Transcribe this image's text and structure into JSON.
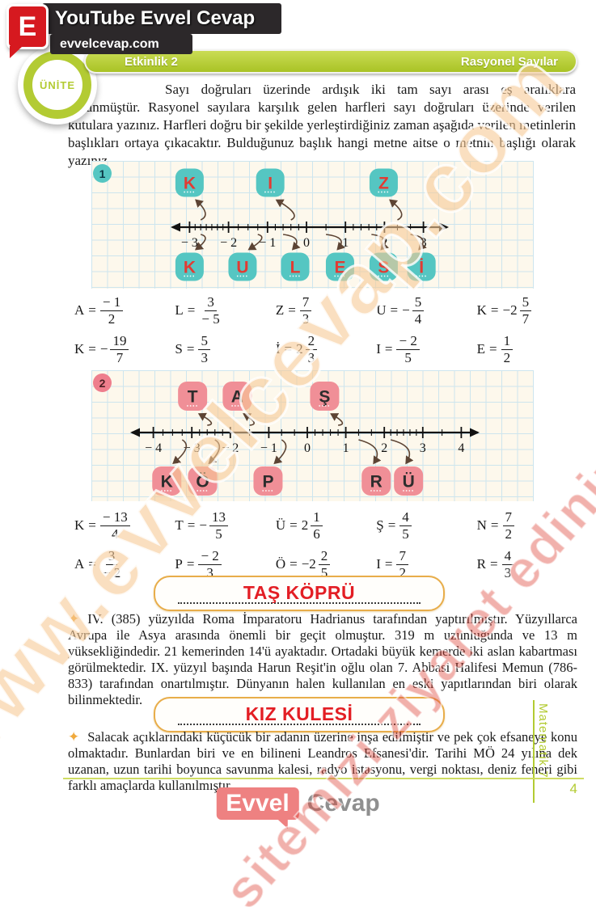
{
  "header": {
    "badge_letter": "E",
    "channel": "YouTube Evvel Cevap",
    "site": "evvelcevap.com",
    "unit_badge": "ÜNİTE",
    "activity": "Etkinlik 2",
    "topic": "Rasyonel Sayılar"
  },
  "intro": "Sayı doğruları üzerinde ardışık iki tam sayı arası eş aralıklara bölünmüştür. Rasyonel sayılara karşılık gelen harfleri sayı doğruları üzerinde verilen kutulara yazınız. Harfleri doğru bir şekilde yerleştirdiğiniz zaman aşağıda verilen metinlerin başlıkları ortaya çıkacaktır. Bulduğunuz başlık hangi metne aitse o metnin başlığı olarak yazınız.",
  "number_lines": [
    {
      "id": "1",
      "min": -3,
      "max": 3,
      "int_labels": [
        "− 3",
        "− 2",
        "− 1",
        "0",
        "1",
        "2",
        "3"
      ],
      "minor_ticks": [
        -2.857,
        -2.714,
        -2.571,
        -2.429,
        -2.286,
        -2.143,
        -1.75,
        -1.5,
        -1.25,
        -0.8,
        -0.6,
        -0.4,
        -0.2,
        0.5,
        1.2,
        1.4,
        1.6,
        1.8,
        2.333,
        2.667
      ],
      "box_color": "#55c6c2",
      "letter_color": "#e23b33",
      "top_boxes": [
        {
          "letter": "K",
          "value": -2.714,
          "bx": -3.0
        },
        {
          "letter": "I",
          "value": -0.4,
          "bx": -0.93
        },
        {
          "letter": "Z",
          "value": 2.333,
          "bx": 1.98
        }
      ],
      "bottom_boxes": [
        {
          "letter": "K",
          "value": -2.714,
          "bx": -3.0
        },
        {
          "letter": "U",
          "value": -1.25,
          "bx": -1.64
        },
        {
          "letter": "L",
          "value": -0.6,
          "bx": -0.29
        },
        {
          "letter": "E",
          "value": 0.5,
          "bx": 0.86
        },
        {
          "letter": "S",
          "value": 1.667,
          "bx": 1.98
        },
        {
          "letter": "İ",
          "value": 2.667,
          "bx": 2.95
        }
      ]
    },
    {
      "id": "2",
      "min": -4,
      "max": 4,
      "int_labels": [
        "− 4",
        "− 3",
        "− 2",
        "− 1",
        "0",
        "1",
        "2",
        "3",
        "4"
      ],
      "minor_ticks": [
        -3.75,
        -3.5,
        -3.25,
        -2.8,
        -2.6,
        -2.4,
        -2.2,
        -1.5,
        -0.667,
        -0.333,
        0.2,
        0.4,
        0.6,
        0.8,
        1.333,
        1.667,
        2.167,
        2.333,
        2.5,
        2.667,
        2.833,
        3.5
      ],
      "box_color": "#f08f97",
      "letter_color": "#2d2d2d",
      "top_boxes": [
        {
          "letter": "T",
          "value": -2.6,
          "bx": -2.98
        },
        {
          "letter": "A",
          "value": -1.5,
          "bx": -1.82
        },
        {
          "letter": "Ş",
          "value": 0.8,
          "bx": 0.45
        }
      ],
      "bottom_boxes": [
        {
          "letter": "K",
          "value": -3.25,
          "bx": -3.65
        },
        {
          "letter": "Ö",
          "value": -2.4,
          "bx": -2.72
        },
        {
          "letter": "P",
          "value": -0.667,
          "bx": -1.02
        },
        {
          "letter": "R",
          "value": 1.333,
          "bx": 1.79
        },
        {
          "letter": "Ü",
          "value": 2.167,
          "bx": 2.63
        }
      ]
    }
  ],
  "values1": {
    "row1": [
      {
        "l": "A",
        "pre": "",
        "num": "− 1",
        "den": "2"
      },
      {
        "l": "L",
        "pre": "",
        "num": "3",
        "den": "− 5"
      },
      {
        "l": "Z",
        "pre": "",
        "num": "7",
        "den": "3"
      },
      {
        "l": "U",
        "pre": "−",
        "num": "5",
        "den": "4"
      },
      {
        "l": "K",
        "pre": "−2",
        "num": "5",
        "den": "7"
      }
    ],
    "row2": [
      {
        "l": "K",
        "pre": "−",
        "num": "19",
        "den": "7"
      },
      {
        "l": "S",
        "pre": "",
        "num": "5",
        "den": "3"
      },
      {
        "l": "İ",
        "pre": "2",
        "num": "2",
        "den": "3"
      },
      {
        "l": "I",
        "pre": "",
        "num": "− 2",
        "den": "5"
      },
      {
        "l": "E",
        "pre": "",
        "num": "1",
        "den": "2"
      }
    ]
  },
  "values2": {
    "row1": [
      {
        "l": "K",
        "pre": "",
        "num": "− 13",
        "den": "4"
      },
      {
        "l": "T",
        "pre": "−",
        "num": "13",
        "den": "5"
      },
      {
        "l": "Ü",
        "pre": "2",
        "num": "1",
        "den": "6"
      },
      {
        "l": "Ş",
        "pre": "",
        "num": "4",
        "den": "5"
      },
      {
        "l": "N",
        "pre": "",
        "num": "7",
        "den": "2"
      }
    ],
    "row2": [
      {
        "l": "A",
        "pre": "",
        "num": "3",
        "den": "− 2"
      },
      {
        "l": "P",
        "pre": "",
        "num": "− 2",
        "den": "3"
      },
      {
        "l": "Ö",
        "pre": "−2",
        "num": "2",
        "den": "5"
      },
      {
        "l": "I",
        "pre": "",
        "num": "7",
        "den": "2"
      },
      {
        "l": "R",
        "pre": "",
        "num": "4",
        "den": "3"
      }
    ]
  },
  "sections": [
    {
      "title": "TAŞ KÖPRÜ",
      "text": "IV. (385) yüzyılda Roma İmparatoru Hadrianus tarafından yaptırılmıştır. Yüzyıllarca Avrupa ile Asya arasında önemli bir geçit olmuştur. 319 m uzunluğunda ve 13 m yüksekliğindedir. 21 kemerinden 14'ü ayaktadır. Ortadaki büyük kemerde iki aslan kabartması görülmektedir. IX. yüzyıl başında Harun Reşit'in oğlu olan 7. Abbasi Halifesi Memun (786-833) tarafından onartılmıştır. Dünyanın halen kullanılan en eski yapıtlarından biri olarak bilinmektedir."
    },
    {
      "title": "KIZ KULESİ",
      "text": "Salacak açıklarındaki küçücük bir adanın üzerine inşa edilmiştir ve pek çok efsaneye konu olmaktadır. Bunlardan biri ve en bilineni Leandros Efsanesi'dir. Tarihi MÖ 24 yılına dek uzanan, uzun tarihi boyunca savunma kalesi, radyo istasyonu, vergi noktası, deniz feneri gibi farklı amaçlarda kullanılmıştır."
    }
  ],
  "sidebar": {
    "book": "Matematik 7",
    "page": "4"
  },
  "footer_logo": {
    "left": "Evvel",
    "right": "Cevap"
  },
  "watermark": {
    "line1": "www.evvelcevap.com",
    "line2": "sitemizi ziyaret ediniz"
  }
}
